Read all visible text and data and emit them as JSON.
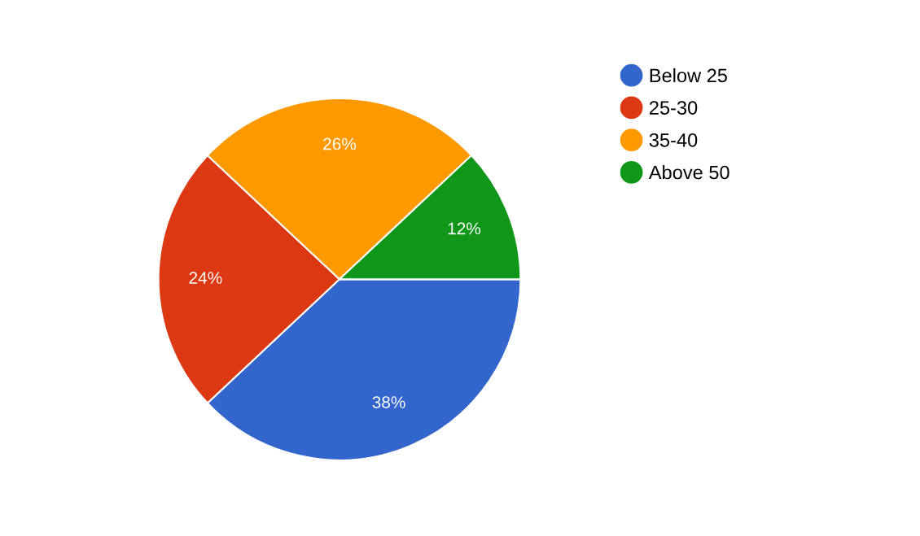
{
  "chart_data": {
    "type": "pie",
    "categories": [
      "Below 25",
      "25-30",
      "35-40",
      "Above 50"
    ],
    "values": [
      38,
      24,
      26,
      12
    ],
    "colors": [
      "#3366cc",
      "#dc3912",
      "#ff9900",
      "#109618"
    ],
    "value_labels": [
      "38%",
      "24%",
      "26%",
      "12%"
    ],
    "legend": "top right"
  }
}
